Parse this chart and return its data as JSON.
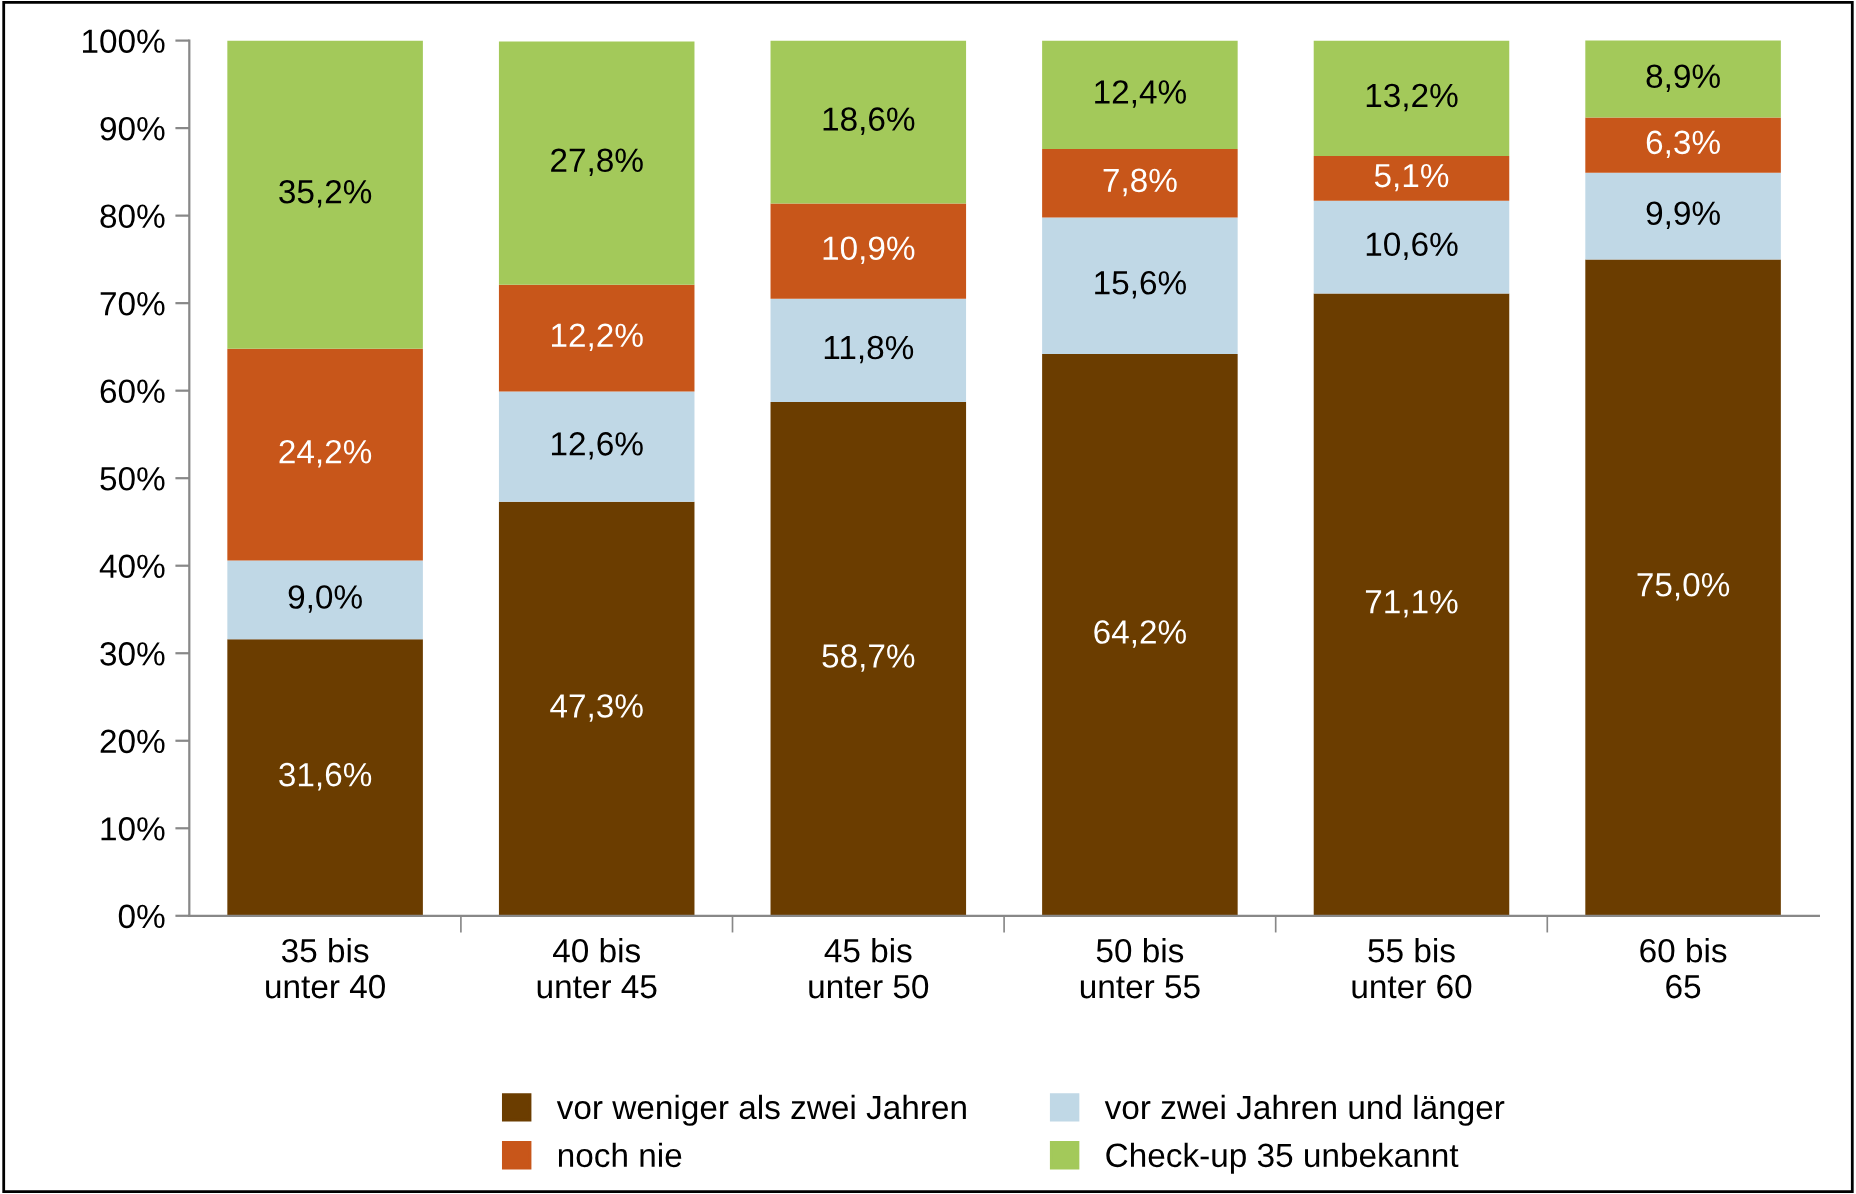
{
  "chart_data": {
    "type": "bar",
    "stacked": true,
    "categories": [
      "35 bis\nunter 40",
      "40 bis\nunter 45",
      "45 bis\nunter 50",
      "50 bis\nunter 55",
      "55 bis\nunter 60",
      "60 bis\n65"
    ],
    "series": [
      {
        "name": "vor weniger als zwei Jahren",
        "color": "#6b3d00",
        "values": [
          31.6,
          47.3,
          58.7,
          64.2,
          71.1,
          75.0
        ],
        "value_labels": [
          "31,6%",
          "47,3%",
          "58,7%",
          "64,2%",
          "71,1%",
          "75,0%"
        ]
      },
      {
        "name": "vor zwei Jahren und länger",
        "color": "#c0d8e6",
        "values": [
          9.0,
          12.6,
          11.8,
          15.6,
          10.6,
          9.9
        ],
        "value_labels": [
          "9,0%",
          "12,6%",
          "11,8%",
          "15,6%",
          "10,6%",
          "9,9%"
        ]
      },
      {
        "name": "noch nie",
        "color": "#c8561a",
        "values": [
          24.2,
          12.2,
          10.9,
          7.8,
          5.1,
          6.3
        ],
        "value_labels": [
          "24,2%",
          "12,2%",
          "10,9%",
          "7,8%",
          "5,1%",
          "6,3%"
        ]
      },
      {
        "name": "Check-up 35 unbekannt",
        "color": "#a3c95a",
        "values": [
          35.2,
          27.8,
          18.6,
          12.4,
          13.2,
          8.9
        ],
        "value_labels": [
          "35,2%",
          "27,8%",
          "18,6%",
          "12,4%",
          "13,2%",
          "8,9%"
        ]
      }
    ],
    "ylim": [
      0,
      100
    ],
    "yticks": [
      {
        "value": 0,
        "label": "0%"
      },
      {
        "value": 10,
        "label": "10%"
      },
      {
        "value": 20,
        "label": "20%"
      },
      {
        "value": 30,
        "label": "30%"
      },
      {
        "value": 40,
        "label": "40%"
      },
      {
        "value": 50,
        "label": "50%"
      },
      {
        "value": 60,
        "label": "60%"
      },
      {
        "value": 70,
        "label": "70%"
      },
      {
        "value": 80,
        "label": "80%"
      },
      {
        "value": 90,
        "label": "90%"
      },
      {
        "value": 100,
        "label": "100%"
      }
    ],
    "grid": false,
    "legend": "bottom"
  }
}
